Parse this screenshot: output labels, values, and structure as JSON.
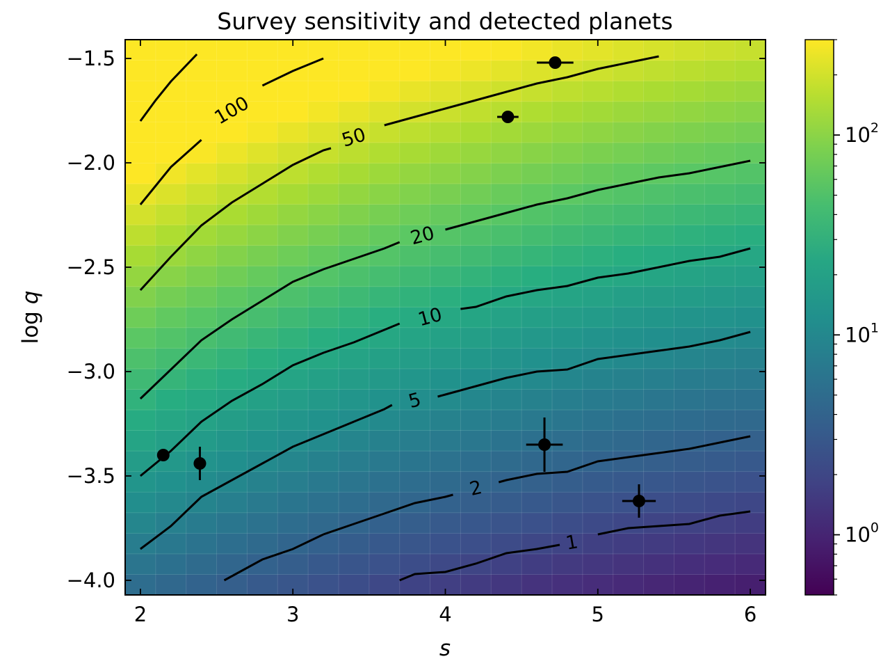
{
  "chart_data": {
    "type": "heatmap",
    "title": "Survey sensitivity and detected planets",
    "xlabel": "s",
    "ylabel": "log q",
    "xlim": [
      1.9,
      6.1
    ],
    "ylim": [
      -4.07,
      -1.41
    ],
    "xticks": [
      2,
      3,
      4,
      5,
      6
    ],
    "xtick_labels": [
      "2",
      "3",
      "4",
      "5",
      "6"
    ],
    "yticks": [
      -1.5,
      -2.0,
      -2.5,
      -3.0,
      -3.5,
      -4.0
    ],
    "ytick_labels": [
      "−1.5",
      "−2.0",
      "−2.5",
      "−3.0",
      "−3.5",
      "−4.0"
    ],
    "colormap": "viridis",
    "colorbar": {
      "scale": "log",
      "range": [
        0.5,
        300
      ],
      "ticks": [
        1,
        10,
        100
      ],
      "tick_labels": [
        "10",
        "10",
        "10"
      ],
      "tick_exponents": [
        "0",
        "1",
        "2"
      ]
    },
    "contours": [
      {
        "level": 1,
        "label": "1",
        "points": [
          [
            3.7,
            -4.0
          ],
          [
            3.8,
            -3.97
          ],
          [
            4.0,
            -3.96
          ],
          [
            4.2,
            -3.92
          ],
          [
            4.4,
            -3.87
          ],
          [
            4.6,
            -3.85
          ],
          [
            4.75,
            -3.83
          ]
        ],
        "points2": [
          [
            5.0,
            -3.78
          ],
          [
            5.2,
            -3.75
          ],
          [
            5.6,
            -3.73
          ],
          [
            5.8,
            -3.69
          ],
          [
            6.0,
            -3.67
          ]
        ],
        "label_at": [
          4.83,
          -3.82
        ],
        "label_angle": -10
      },
      {
        "level": 2,
        "label": "2",
        "points": [
          [
            2.55,
            -4.0
          ],
          [
            2.6,
            -3.98
          ],
          [
            2.8,
            -3.9
          ],
          [
            3.0,
            -3.85
          ],
          [
            3.2,
            -3.78
          ],
          [
            3.4,
            -3.73
          ],
          [
            3.6,
            -3.68
          ],
          [
            3.8,
            -3.63
          ],
          [
            4.0,
            -3.6
          ],
          [
            4.05,
            -3.59
          ]
        ],
        "points2": [
          [
            4.35,
            -3.53
          ],
          [
            4.4,
            -3.52
          ],
          [
            4.6,
            -3.49
          ],
          [
            4.8,
            -3.48
          ],
          [
            5.0,
            -3.43
          ],
          [
            5.2,
            -3.41
          ],
          [
            5.4,
            -3.39
          ],
          [
            5.6,
            -3.37
          ],
          [
            5.8,
            -3.34
          ],
          [
            6.0,
            -3.31
          ]
        ],
        "label_at": [
          4.2,
          -3.56
        ],
        "label_angle": -13
      },
      {
        "level": 5,
        "label": "5",
        "points": [
          [
            2.0,
            -3.85
          ],
          [
            2.2,
            -3.74
          ],
          [
            2.4,
            -3.6
          ],
          [
            2.6,
            -3.52
          ],
          [
            2.8,
            -3.44
          ],
          [
            3.0,
            -3.36
          ],
          [
            3.2,
            -3.3
          ],
          [
            3.4,
            -3.24
          ],
          [
            3.6,
            -3.18
          ],
          [
            3.65,
            -3.16
          ]
        ],
        "points2": [
          [
            3.95,
            -3.12
          ],
          [
            4.0,
            -3.11
          ],
          [
            4.2,
            -3.07
          ],
          [
            4.4,
            -3.03
          ],
          [
            4.6,
            -3.0
          ],
          [
            4.8,
            -2.99
          ],
          [
            5.0,
            -2.94
          ],
          [
            5.2,
            -2.92
          ],
          [
            5.4,
            -2.9
          ],
          [
            5.6,
            -2.88
          ],
          [
            5.8,
            -2.85
          ],
          [
            6.0,
            -2.81
          ]
        ],
        "label_at": [
          3.8,
          -3.14
        ],
        "label_angle": -15
      },
      {
        "level": 10,
        "label": "10",
        "points": [
          [
            2.0,
            -3.5
          ],
          [
            2.2,
            -3.38
          ],
          [
            2.4,
            -3.24
          ],
          [
            2.6,
            -3.14
          ],
          [
            2.8,
            -3.06
          ],
          [
            3.0,
            -2.97
          ],
          [
            3.2,
            -2.91
          ],
          [
            3.4,
            -2.86
          ],
          [
            3.6,
            -2.8
          ],
          [
            3.7,
            -2.77
          ]
        ],
        "points2": [
          [
            4.1,
            -2.7
          ],
          [
            4.2,
            -2.69
          ],
          [
            4.4,
            -2.64
          ],
          [
            4.6,
            -2.61
          ],
          [
            4.8,
            -2.59
          ],
          [
            5.0,
            -2.55
          ],
          [
            5.2,
            -2.53
          ],
          [
            5.4,
            -2.5
          ],
          [
            5.6,
            -2.47
          ],
          [
            5.8,
            -2.45
          ],
          [
            6.0,
            -2.41
          ]
        ],
        "label_at": [
          3.9,
          -2.74
        ],
        "label_angle": -15
      },
      {
        "level": 20,
        "label": "20",
        "points": [
          [
            2.0,
            -3.13
          ],
          [
            2.2,
            -2.99
          ],
          [
            2.4,
            -2.85
          ],
          [
            2.6,
            -2.75
          ],
          [
            2.8,
            -2.66
          ],
          [
            3.0,
            -2.57
          ],
          [
            3.2,
            -2.51
          ],
          [
            3.4,
            -2.46
          ],
          [
            3.6,
            -2.41
          ],
          [
            3.7,
            -2.38
          ]
        ],
        "points2": [
          [
            4.0,
            -2.32
          ],
          [
            4.2,
            -2.28
          ],
          [
            4.4,
            -2.24
          ],
          [
            4.6,
            -2.2
          ],
          [
            4.8,
            -2.17
          ],
          [
            5.0,
            -2.13
          ],
          [
            5.2,
            -2.1
          ],
          [
            5.4,
            -2.07
          ],
          [
            5.6,
            -2.05
          ],
          [
            5.8,
            -2.02
          ],
          [
            6.0,
            -1.99
          ]
        ],
        "label_at": [
          3.85,
          -2.35
        ],
        "label_angle": -15
      },
      {
        "level": 50,
        "label": "50",
        "points": [
          [
            2.0,
            -2.61
          ],
          [
            2.2,
            -2.45
          ],
          [
            2.4,
            -2.3
          ],
          [
            2.6,
            -2.19
          ],
          [
            2.8,
            -2.1
          ],
          [
            3.0,
            -2.01
          ],
          [
            3.2,
            -1.94
          ],
          [
            3.25,
            -1.93
          ]
        ],
        "points2": [
          [
            3.6,
            -1.82
          ],
          [
            3.8,
            -1.78
          ],
          [
            4.0,
            -1.74
          ],
          [
            4.2,
            -1.7
          ],
          [
            4.4,
            -1.66
          ],
          [
            4.6,
            -1.62
          ],
          [
            4.8,
            -1.59
          ],
          [
            5.0,
            -1.55
          ],
          [
            5.2,
            -1.52
          ],
          [
            5.4,
            -1.49
          ]
        ],
        "label_at": [
          3.4,
          -1.88
        ],
        "label_angle": -17
      },
      {
        "level": 100,
        "label": "100",
        "points": [
          [
            2.0,
            -2.2
          ],
          [
            2.1,
            -2.11
          ],
          [
            2.2,
            -2.02
          ],
          [
            2.4,
            -1.89
          ]
        ],
        "points2": [
          [
            2.8,
            -1.63
          ],
          [
            3.0,
            -1.56
          ],
          [
            3.2,
            -1.5
          ]
        ],
        "label_at": [
          2.6,
          -1.75
        ],
        "label_angle": -30
      },
      {
        "level": 200,
        "label": "",
        "points": [
          [
            2.0,
            -1.8
          ],
          [
            2.1,
            -1.7
          ],
          [
            2.2,
            -1.61
          ],
          [
            2.37,
            -1.48
          ]
        ],
        "points2": [],
        "label_at": null,
        "label_angle": 0
      }
    ],
    "points": [
      {
        "s": 4.72,
        "logq": -1.52,
        "s_err": 0.12,
        "logq_err": 0
      },
      {
        "s": 4.41,
        "logq": -1.78,
        "s_err": 0.07,
        "logq_err": 0
      },
      {
        "s": 2.15,
        "logq": -3.4,
        "s_err": 0.03,
        "logq_err": 0
      },
      {
        "s": 2.39,
        "logq": -3.44,
        "s_err": 0.04,
        "logq_err": 0.08
      },
      {
        "s": 4.65,
        "logq": -3.35,
        "s_err": 0.12,
        "logq_err": 0.13
      },
      {
        "s": 5.27,
        "logq": -3.62,
        "s_err": 0.11,
        "logq_err": 0.08
      }
    ]
  }
}
